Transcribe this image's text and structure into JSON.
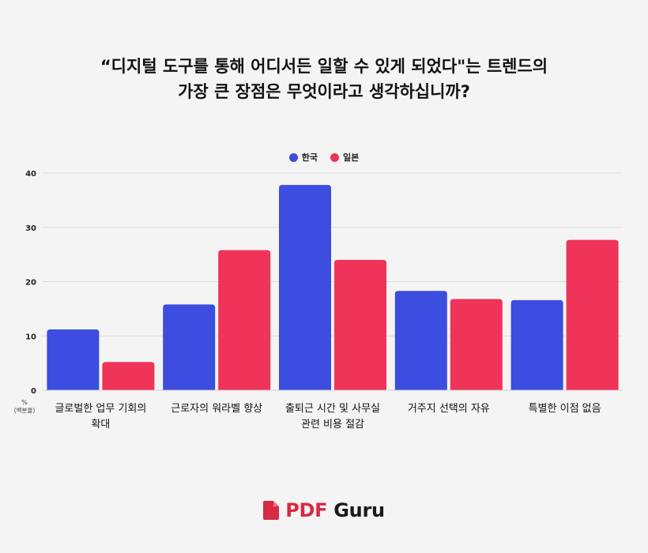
{
  "title_line1": "“디지털 도구를 통해 어디서든 일할 수 있게 되었다\"는 트렌드의",
  "title_line2": "가장 큰 장점은 무엇이라고 생각하십니까?",
  "brand": {
    "pdf": "PDF",
    "guru": "Guru",
    "accent": "#d72b45"
  },
  "chart_data": {
    "type": "bar",
    "ylabel": [
      "%",
      "(백분율)"
    ],
    "ylim": [
      0,
      40
    ],
    "yticks": [
      0,
      10,
      20,
      30,
      40
    ],
    "grid": true,
    "legend_position": "top-center",
    "categories": [
      [
        "글로벌한 업무 기회의",
        "확대"
      ],
      [
        "근로자의 워라벨 향상"
      ],
      [
        "출퇴근 시간 및 사무실",
        "관련 비용 절감"
      ],
      [
        "거주지 선택의 자유"
      ],
      [
        "특별한 이점 없음"
      ]
    ],
    "series": [
      {
        "name": "한국",
        "color": "#3d4ddf",
        "values": [
          11.2,
          15.8,
          37.8,
          18.3,
          16.6
        ]
      },
      {
        "name": "일본",
        "color": "#f03358",
        "values": [
          5.2,
          25.8,
          24.0,
          16.8,
          27.7
        ]
      }
    ]
  }
}
